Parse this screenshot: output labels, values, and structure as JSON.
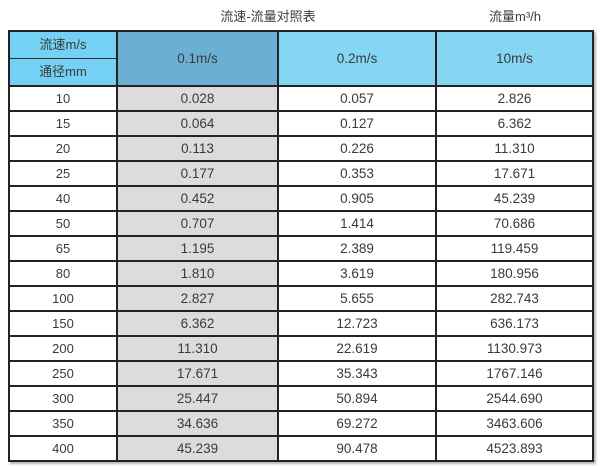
{
  "page": {
    "title": "流速-流量对照表",
    "unit_label": "流量m³/h"
  },
  "table": {
    "header": {
      "corner_top": "流速m/s",
      "corner_bottom": "通径mm",
      "columns": [
        "0.1m/s",
        "0.2m/s",
        "10m/s"
      ]
    },
    "rows": [
      {
        "diameter": "10",
        "values": [
          "0.028",
          "0.057",
          "2.826"
        ]
      },
      {
        "diameter": "15",
        "values": [
          "0.064",
          "0.127",
          "6.362"
        ]
      },
      {
        "diameter": "20",
        "values": [
          "0.113",
          "0.226",
          "11.310"
        ]
      },
      {
        "diameter": "25",
        "values": [
          "0.177",
          "0.353",
          "17.671"
        ]
      },
      {
        "diameter": "40",
        "values": [
          "0.452",
          "0.905",
          "45.239"
        ]
      },
      {
        "diameter": "50",
        "values": [
          "0.707",
          "1.414",
          "70.686"
        ]
      },
      {
        "diameter": "65",
        "values": [
          "1.195",
          "2.389",
          "119.459"
        ]
      },
      {
        "diameter": "80",
        "values": [
          "1.810",
          "3.619",
          "180.956"
        ]
      },
      {
        "diameter": "100",
        "values": [
          "2.827",
          "5.655",
          "282.743"
        ]
      },
      {
        "diameter": "150",
        "values": [
          "6.362",
          "12.723",
          "636.173"
        ]
      },
      {
        "diameter": "200",
        "values": [
          "11.310",
          "22.619",
          "1130.973"
        ]
      },
      {
        "diameter": "250",
        "values": [
          "17.671",
          "35.343",
          "1767.146"
        ]
      },
      {
        "diameter": "300",
        "values": [
          "25.447",
          "50.894",
          "2544.690"
        ]
      },
      {
        "diameter": "350",
        "values": [
          "34.636",
          "69.272",
          "3463.606"
        ]
      },
      {
        "diameter": "400",
        "values": [
          "45.239",
          "90.478",
          "4523.893"
        ]
      }
    ]
  },
  "colors": {
    "header_blue": "#85d6f2",
    "header_corner_blue": "#74d1f4",
    "highlight_column_blue": "#6bafd4",
    "highlight_column_gray": "#dcdcdc",
    "border": "#232323",
    "text": "#3a3a3a"
  },
  "chart_data": {
    "type": "table",
    "title": "流速-流量对照表",
    "unit_label": "流量m³/h",
    "row_axis_label": "通径mm",
    "column_axis_label": "流速m/s",
    "columns": [
      "0.1m/s",
      "0.2m/s",
      "10m/s"
    ],
    "rows": [
      [
        10,
        0.028,
        0.057,
        2.826
      ],
      [
        15,
        0.064,
        0.127,
        6.362
      ],
      [
        20,
        0.113,
        0.226,
        11.31
      ],
      [
        25,
        0.177,
        0.353,
        17.671
      ],
      [
        40,
        0.452,
        0.905,
        45.239
      ],
      [
        50,
        0.707,
        1.414,
        70.686
      ],
      [
        65,
        1.195,
        2.389,
        119.459
      ],
      [
        80,
        1.81,
        3.619,
        180.956
      ],
      [
        100,
        2.827,
        5.655,
        282.743
      ],
      [
        150,
        6.362,
        12.723,
        636.173
      ],
      [
        200,
        11.31,
        22.619,
        1130.973
      ],
      [
        250,
        17.671,
        35.343,
        1767.146
      ],
      [
        300,
        25.447,
        50.894,
        2544.69
      ],
      [
        350,
        34.636,
        69.272,
        3463.606
      ],
      [
        400,
        45.239,
        90.478,
        4523.893
      ]
    ]
  }
}
